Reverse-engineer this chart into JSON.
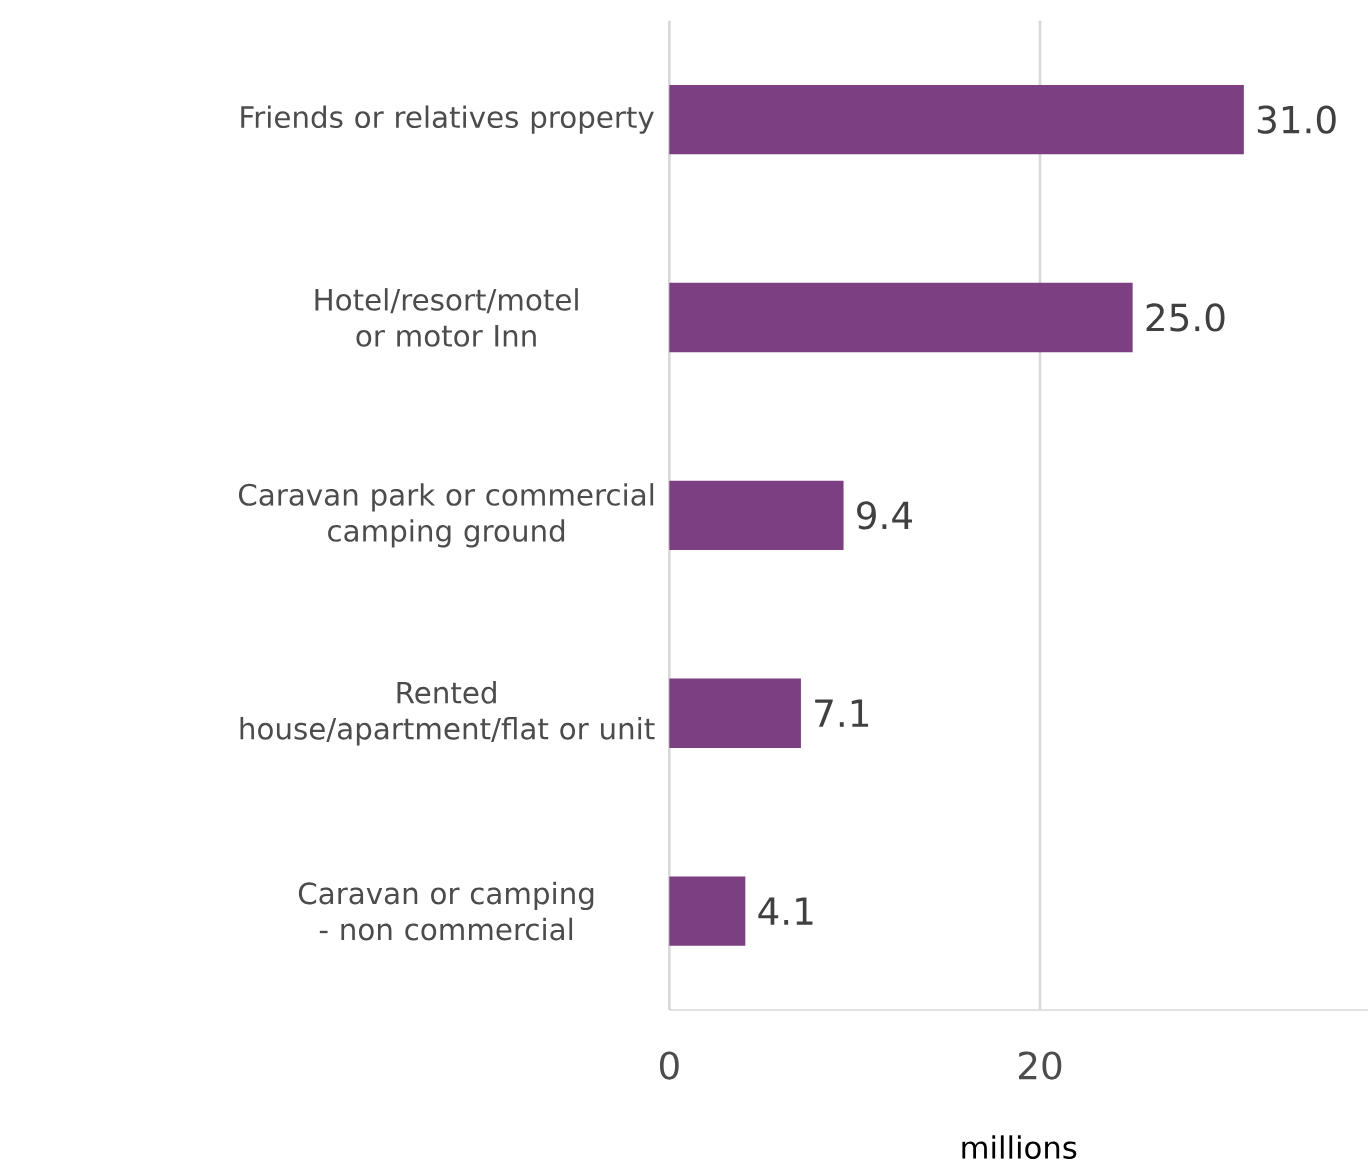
{
  "chart_data": {
    "type": "bar",
    "orientation": "horizontal",
    "xlabel": "millions",
    "categories": [
      "Friends or relatives property",
      "Hotel/resort/motel or motor Inn",
      "Caravan park or commercial camping ground",
      "Rented house/apartment/flat or unit",
      "Caravan or camping - non commercial"
    ],
    "values": [
      31.0,
      25.0,
      9.4,
      7.1,
      4.1
    ],
    "value_labels": [
      "31.0",
      "25.0",
      "9.4",
      "7.1",
      "4.1"
    ],
    "color": "#7b3f82",
    "xlim": [
      0,
      37.7
    ],
    "xticks": [
      0,
      20
    ],
    "grid": "x"
  }
}
